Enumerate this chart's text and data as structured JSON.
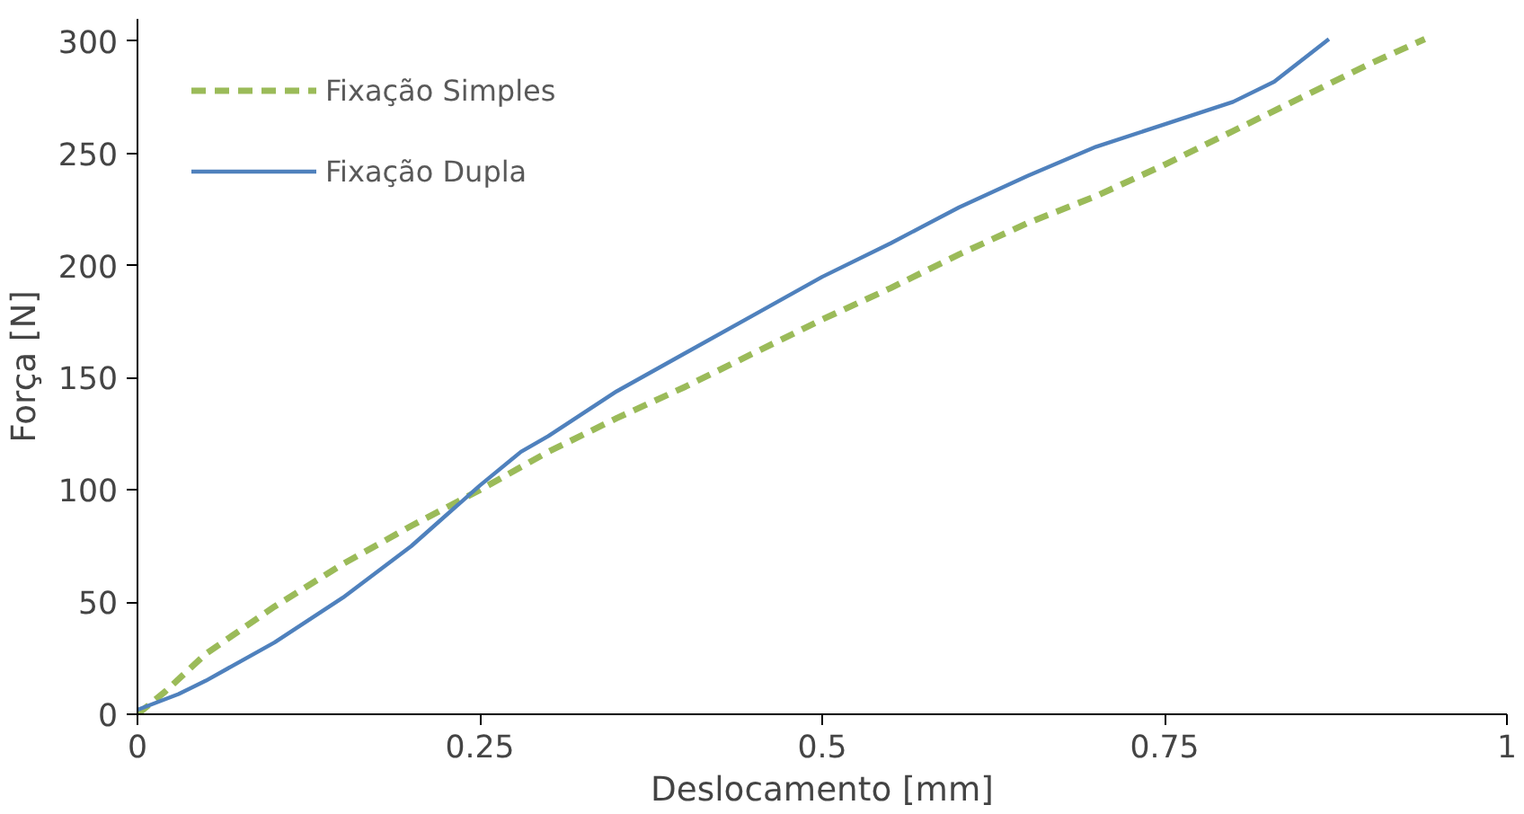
{
  "chart_data": {
    "type": "line",
    "xlabel": "Deslocamento [mm]",
    "ylabel": "Força [N]",
    "xlim": [
      0,
      1
    ],
    "ylim": [
      0,
      310
    ],
    "xticks": [
      0,
      {
        "value": 0.25,
        "label": "0.25"
      },
      {
        "value": 0.5,
        "label": "0.5"
      },
      {
        "value": 0.75,
        "label": "0.75"
      },
      1
    ],
    "yticks": [
      0,
      50,
      100,
      150,
      200,
      250,
      300
    ],
    "grid": false,
    "legend": "top left",
    "series": [
      {
        "name": "Fixação Simples",
        "color": "#9bbb59",
        "line_style": "dashed",
        "x": [
          0,
          0.02,
          0.05,
          0.1,
          0.15,
          0.2,
          0.25,
          0.3,
          0.35,
          0.4,
          0.45,
          0.5,
          0.55,
          0.6,
          0.65,
          0.7,
          0.75,
          0.8,
          0.85,
          0.9,
          0.94
        ],
        "values": [
          0,
          10,
          27,
          48,
          67,
          84,
          100,
          117,
          132,
          146,
          161,
          176,
          190,
          205,
          219,
          231,
          245,
          260,
          275,
          290,
          301
        ]
      },
      {
        "name": "Fixação Dupla",
        "color": "#4f81bd",
        "line_style": "solid",
        "x": [
          0,
          0.03,
          0.05,
          0.1,
          0.15,
          0.2,
          0.25,
          0.28,
          0.3,
          0.35,
          0.4,
          0.45,
          0.5,
          0.55,
          0.6,
          0.65,
          0.7,
          0.75,
          0.8,
          0.83,
          0.87
        ],
        "values": [
          2,
          9,
          15,
          32,
          52,
          75,
          102,
          117,
          124,
          144,
          161,
          178,
          195,
          210,
          226,
          240,
          253,
          263,
          273,
          282,
          301
        ]
      }
    ]
  }
}
